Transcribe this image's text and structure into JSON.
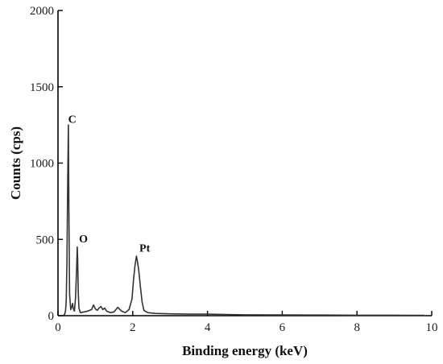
{
  "chart_data": {
    "type": "line",
    "xlabel": "Binding energy (keV)",
    "ylabel": "Counts (cps)",
    "xlim": [
      0,
      10
    ],
    "ylim": [
      0,
      2000
    ],
    "x_ticks": [
      "0",
      "2",
      "4",
      "6",
      "8",
      "10"
    ],
    "y_ticks": [
      "0",
      "500",
      "1000",
      "1500",
      "2000"
    ],
    "grid": false,
    "legend": "none",
    "line_color": "#333333",
    "annotations": [
      {
        "text": "C",
        "x": 0.38,
        "y": 1265
      },
      {
        "text": "O",
        "x": 0.68,
        "y": 480
      },
      {
        "text": "Pt",
        "x": 2.32,
        "y": 420
      }
    ],
    "series": [
      {
        "x": [
          0.15,
          0.18,
          0.2,
          0.22,
          0.24,
          0.26,
          0.277,
          0.29,
          0.31,
          0.34,
          0.37,
          0.39,
          0.41,
          0.44,
          0.47,
          0.5,
          0.515,
          0.525,
          0.54,
          0.56,
          0.6,
          0.7,
          0.8,
          0.9,
          0.95,
          1.0,
          1.05,
          1.1,
          1.15,
          1.2,
          1.25,
          1.3,
          1.4,
          1.5,
          1.6,
          1.7,
          1.8,
          1.9,
          1.98,
          2.02,
          2.06,
          2.1,
          2.13,
          2.16,
          2.2,
          2.25,
          2.3,
          2.4,
          2.6,
          3.0,
          3.5,
          4.0,
          4.5,
          5.0,
          6.0,
          7.0,
          8.0,
          9.0,
          9.8
        ],
        "values": [
          5,
          10,
          30,
          90,
          350,
          900,
          1250,
          700,
          140,
          40,
          60,
          80,
          45,
          30,
          120,
          320,
          450,
          380,
          160,
          50,
          20,
          25,
          30,
          40,
          70,
          45,
          35,
          50,
          60,
          40,
          50,
          30,
          20,
          25,
          55,
          30,
          20,
          40,
          110,
          230,
          330,
          390,
          350,
          300,
          200,
          90,
          35,
          20,
          15,
          12,
          10,
          10,
          8,
          6,
          5,
          4,
          3,
          3,
          2
        ]
      }
    ]
  }
}
